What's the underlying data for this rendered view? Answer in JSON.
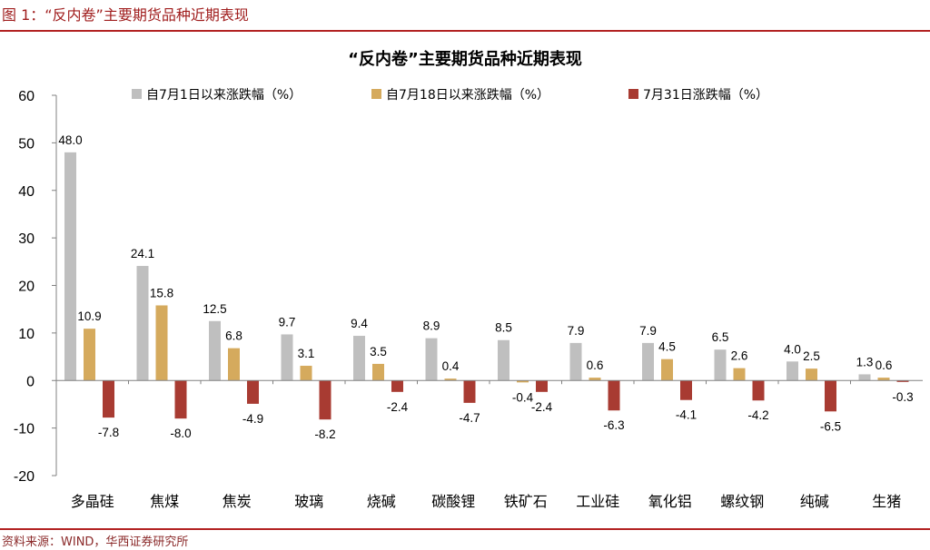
{
  "figure_title": "图 1：“反内卷”主要期货品种近期表现",
  "source_note": "资料来源：WIND，华西证券研究所",
  "colors": {
    "series1": "#bfbfbf",
    "series2": "#d5aa5d",
    "series3": "#a83b32",
    "rule": "#b22222"
  },
  "chart_data": {
    "type": "bar",
    "title": "“反内卷”主要期货品种近期表现",
    "xlabel": "",
    "ylabel": "",
    "ylim": [
      -20,
      60
    ],
    "yticks": [
      -20,
      -10,
      0,
      10,
      20,
      30,
      40,
      50,
      60
    ],
    "grid": false,
    "legend_position": "top",
    "categories": [
      "多晶硅",
      "焦煤",
      "焦炭",
      "玻璃",
      "烧碱",
      "碳酸锂",
      "铁矿石",
      "工业硅",
      "氧化铝",
      "螺纹钢",
      "纯碱",
      "生猪"
    ],
    "series": [
      {
        "name": "自7月1日以来涨跌幅（%）",
        "values": [
          48.0,
          24.1,
          12.5,
          9.7,
          9.4,
          8.9,
          8.5,
          7.9,
          7.9,
          6.5,
          4.0,
          1.3
        ]
      },
      {
        "name": "自7月18日以来涨跌幅（%）",
        "values": [
          10.9,
          15.8,
          6.8,
          3.1,
          3.5,
          0.4,
          -0.4,
          0.6,
          4.5,
          2.6,
          2.5,
          0.6
        ]
      },
      {
        "name": "7月31日涨跌幅（%）",
        "values": [
          -7.8,
          -8.0,
          -4.9,
          -8.2,
          -2.4,
          -4.7,
          -2.4,
          -6.3,
          -4.1,
          -4.2,
          -6.5,
          -0.3
        ]
      }
    ]
  }
}
